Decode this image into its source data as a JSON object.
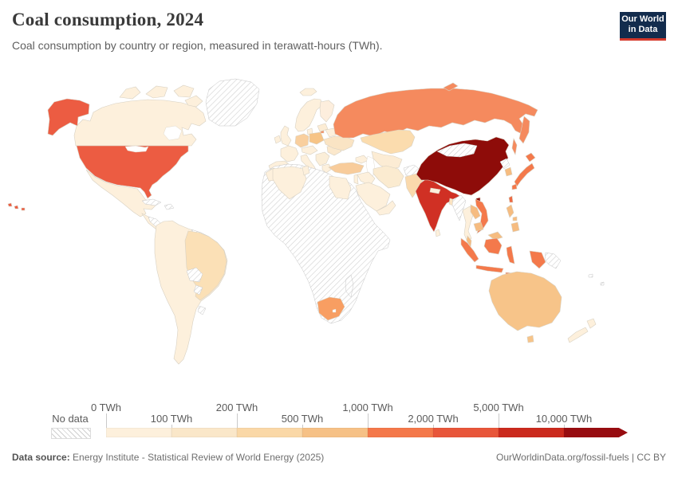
{
  "header": {
    "title": "Coal consumption, 2024",
    "subtitle": "Coal consumption by country or region, measured in terawatt-hours (TWh)."
  },
  "logo": {
    "line1": "Our World",
    "line2": "in Data",
    "bg": "#132c4d",
    "accent": "#d5392b"
  },
  "legend": {
    "no_data_label": "No data",
    "ticks": [
      "0 TWh",
      "100 TWh",
      "200 TWh",
      "500 TWh",
      "1,000 TWh",
      "2,000 TWh",
      "5,000 TWh",
      "10,000 TWh"
    ],
    "bucket_colors": [
      "#fdf0dc",
      "#fae7c9",
      "#fad8a7",
      "#f6c186",
      "#f4784a",
      "#e8563a",
      "#cb2a1d",
      "#970c10"
    ]
  },
  "footer": {
    "source_prefix": "Data source:",
    "source_text": " Energy Institute - Statistical Review of World Energy (2025)",
    "credit": "OurWorldinData.org/fossil-fuels | CC BY"
  },
  "map": {
    "ocean": "#ffffff",
    "hatch_line": "#cccccc",
    "fills": {
      "canada": "#fdf0dc",
      "arctic-1": "#fdf0dc",
      "arctic-2": "#fdf0dc",
      "arctic-3": "#fdf0dc",
      "arctic-4": "#fdf0dc",
      "alaska": "#ec5c42",
      "usa": "#ec5c42",
      "hawaii": "#ec5c42",
      "mexico": "#fdf0dc",
      "central-america": "#fdf0dc",
      "central-america-hatch": "hatch",
      "cuba": "hatch",
      "hispaniola": "hatch",
      "south-america-base": "#fdf0dc",
      "guyanas": "hatch",
      "brazil": "#fbe0b6",
      "bolivia": "hatch",
      "paraguay": "hatch",
      "uruguay": "hatch",
      "greenland": "hatch",
      "iceland": "#fdf0dc",
      "uk": "#fdf0dc",
      "ireland": "#fdf0dc",
      "norway-sweden": "#fdf0dc",
      "finland": "#fdeedd",
      "denmark": "#fdf0dc",
      "france": "#fdf0dc",
      "iberia": "#fdf0dc",
      "germany": "#f9cf9e",
      "poland": "#f7c486",
      "baltics": "#fcecd4",
      "belarus": "#fdf0dc",
      "czech-austria": "#fdf0dc",
      "italy": "#fdf0dc",
      "sicily": "#fdf0dc",
      "balkans": "#fbeed8",
      "greece": "#fdf0dc",
      "romania": "#fbe8cc",
      "ukraine": "#fae4c4",
      "kaliningrad": "#f58a5e",
      "russia": "#f58a5e",
      "kamchatka": "#f58a5e",
      "sakhalin": "#f58a5e",
      "novaya-zemlya": "#f58a5e",
      "kazakhstan": "#fbdcae",
      "central-asia": "#fcecd4",
      "caucasus": "#fdf0dc",
      "turkey": "#f8cc9b",
      "syria-iraq": "#fdf0dc",
      "levant": "#fdf0dc",
      "saudi-arabia": "#fdf0dc",
      "yemen-oman": "#fdf0dc",
      "iran": "#fbebd0",
      "afghanistan": "hatch",
      "pakistan": "#fad9ac",
      "india": "#d03024",
      "nepal": "#fdf0dc",
      "bangladesh": "#fbe3c1",
      "sri-lanka": "#fdf0dc",
      "china": "#8e0c09",
      "hainan": "#8e0c09",
      "mongolia": "hatch",
      "north-korea": "hatch",
      "south-korea": "#f6bc80",
      "japan-hokkaido": "#f4794b",
      "japan-honshu": "#f4794b",
      "japan-kyushu": "#f4794b",
      "taiwan": "#ed6a44",
      "myanmar": "hatch",
      "thailand": "#fdf0dc",
      "laos": "#f6bc80",
      "vietnam": "#f4794b",
      "cambodia": "#f6bc80",
      "malaysia-peninsula": "#f6bc80",
      "malaysia-borneo": "#f6bc80",
      "sumatra": "#f4794b",
      "java": "#f4794b",
      "kalimantan": "#f4794b",
      "sulawesi": "#f4794b",
      "papua": "#f4794b",
      "lesser-sunda": "#f4794b",
      "png": "hatch",
      "philippines-luzon": "#f6bc80",
      "philippines-visayas": "#f6bc80",
      "philippines-mindanao": "#f6bc80",
      "australia": "#f7c489",
      "tasmania": "#f7c489",
      "new-zealand-north": "#fdf0dc",
      "new-zealand-south": "#fdf0dc",
      "pacific-islands": "hatch",
      "africa": "hatch",
      "morocco": "#fdf0dc",
      "algeria": "#fdf0dc",
      "tunisia": "#fdf0dc",
      "egypt": "#fdf0dc",
      "south-africa": "#f89e62",
      "madagascar": "hatch"
    }
  },
  "chart_data": {
    "type": "heatmap",
    "subtype": "choropleth-world-map",
    "title": "Coal consumption, 2024",
    "unit": "TWh",
    "legend_position": "bottom",
    "legend_buckets": [
      {
        "range": "0-100 TWh",
        "color": "#fdf0dc"
      },
      {
        "range": "100-200 TWh",
        "color": "#fae7c9"
      },
      {
        "range": "200-500 TWh",
        "color": "#fad8a7"
      },
      {
        "range": "500-1,000 TWh",
        "color": "#f6c186"
      },
      {
        "range": "1,000-2,000 TWh",
        "color": "#f4784a"
      },
      {
        "range": "2,000-5,000 TWh",
        "color": "#e8563a"
      },
      {
        "range": "5,000-10,000 TWh",
        "color": "#cb2a1d"
      },
      {
        "range": "10,000+ TWh",
        "color": "#970c10"
      }
    ],
    "regions": [
      {
        "name": "China",
        "bucket": "10,000+ TWh"
      },
      {
        "name": "India",
        "bucket": "5,000-10,000 TWh"
      },
      {
        "name": "United States",
        "bucket": "2,000-5,000 TWh"
      },
      {
        "name": "Russia",
        "bucket": "1,000-2,000 TWh"
      },
      {
        "name": "Japan",
        "bucket": "1,000-2,000 TWh"
      },
      {
        "name": "Indonesia",
        "bucket": "1,000-2,000 TWh"
      },
      {
        "name": "Vietnam",
        "bucket": "1,000-2,000 TWh"
      },
      {
        "name": "Taiwan",
        "bucket": "1,000-2,000 TWh"
      },
      {
        "name": "South Africa",
        "bucket": "500-1,000 TWh"
      },
      {
        "name": "Poland",
        "bucket": "500-1,000 TWh"
      },
      {
        "name": "Australia",
        "bucket": "500-1,000 TWh"
      },
      {
        "name": "South Korea",
        "bucket": "500-1,000 TWh"
      },
      {
        "name": "Malaysia",
        "bucket": "500-1,000 TWh"
      },
      {
        "name": "Philippines",
        "bucket": "500-1,000 TWh"
      },
      {
        "name": "Laos",
        "bucket": "500-1,000 TWh"
      },
      {
        "name": "Cambodia",
        "bucket": "500-1,000 TWh"
      },
      {
        "name": "Germany",
        "bucket": "200-500 TWh"
      },
      {
        "name": "Turkey",
        "bucket": "200-500 TWh"
      },
      {
        "name": "Kazakhstan",
        "bucket": "200-500 TWh"
      },
      {
        "name": "Pakistan",
        "bucket": "200-500 TWh"
      },
      {
        "name": "Brazil",
        "bucket": "100-200 TWh"
      },
      {
        "name": "Ukraine",
        "bucket": "100-200 TWh"
      },
      {
        "name": "Iran",
        "bucket": "100-200 TWh"
      },
      {
        "name": "Romania",
        "bucket": "100-200 TWh"
      },
      {
        "name": "Bangladesh",
        "bucket": "100-200 TWh"
      },
      {
        "name": "Canada",
        "bucket": "0-100 TWh"
      },
      {
        "name": "Mexico",
        "bucket": "0-100 TWh"
      },
      {
        "name": "Colombia",
        "bucket": "0-100 TWh"
      },
      {
        "name": "Venezuela",
        "bucket": "0-100 TWh"
      },
      {
        "name": "Peru",
        "bucket": "0-100 TWh"
      },
      {
        "name": "Chile",
        "bucket": "0-100 TWh"
      },
      {
        "name": "Argentina",
        "bucket": "0-100 TWh"
      },
      {
        "name": "United Kingdom",
        "bucket": "0-100 TWh"
      },
      {
        "name": "Ireland",
        "bucket": "0-100 TWh"
      },
      {
        "name": "France",
        "bucket": "0-100 TWh"
      },
      {
        "name": "Spain",
        "bucket": "0-100 TWh"
      },
      {
        "name": "Portugal",
        "bucket": "0-100 TWh"
      },
      {
        "name": "Italy",
        "bucket": "0-100 TWh"
      },
      {
        "name": "Greece",
        "bucket": "0-100 TWh"
      },
      {
        "name": "Norway",
        "bucket": "0-100 TWh"
      },
      {
        "name": "Sweden",
        "bucket": "0-100 TWh"
      },
      {
        "name": "Finland",
        "bucket": "0-100 TWh"
      },
      {
        "name": "Denmark",
        "bucket": "0-100 TWh"
      },
      {
        "name": "Iceland",
        "bucket": "0-100 TWh"
      },
      {
        "name": "Morocco",
        "bucket": "0-100 TWh"
      },
      {
        "name": "Algeria",
        "bucket": "0-100 TWh"
      },
      {
        "name": "Tunisia",
        "bucket": "0-100 TWh"
      },
      {
        "name": "Egypt",
        "bucket": "0-100 TWh"
      },
      {
        "name": "Saudi Arabia",
        "bucket": "0-100 TWh"
      },
      {
        "name": "Iraq",
        "bucket": "0-100 TWh"
      },
      {
        "name": "Uzbekistan",
        "bucket": "0-100 TWh"
      },
      {
        "name": "Thailand",
        "bucket": "0-100 TWh"
      },
      {
        "name": "Sri Lanka",
        "bucket": "0-100 TWh"
      },
      {
        "name": "Nepal",
        "bucket": "0-100 TWh"
      },
      {
        "name": "New Zealand",
        "bucket": "0-100 TWh"
      }
    ],
    "no_data_regions": [
      "Greenland",
      "Mongolia",
      "Afghanistan",
      "Myanmar",
      "North Korea",
      "Libya",
      "Western Sahara",
      "most of Sub-Saharan Africa",
      "Madagascar",
      "Bolivia",
      "Paraguay",
      "Uruguay",
      "Guyana",
      "Suriname",
      "Cuba",
      "Hispaniola",
      "Honduras/Nicaragua",
      "Papua New Guinea",
      "Pacific islands"
    ]
  }
}
